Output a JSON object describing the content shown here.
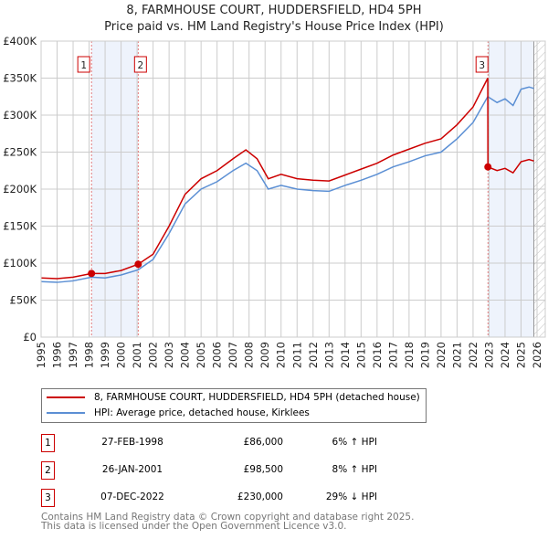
{
  "title": "8, FARMHOUSE COURT, HUDDERSFIELD, HD4 5PH",
  "subtitle": "Price paid vs. HM Land Registry's House Price Index (HPI)",
  "chart_data": {
    "type": "line",
    "title": "8, FARMHOUSE COURT, HUDDERSFIELD, HD4 5PH — Price paid vs. HM Land Registry's House Price Index (HPI)",
    "xlim": [
      1995,
      2026
    ],
    "ylim": [
      0,
      400000
    ],
    "x_ticks": [
      "1995",
      "1996",
      "1997",
      "1998",
      "1999",
      "2000",
      "2001",
      "2002",
      "2003",
      "2004",
      "2005",
      "2006",
      "2007",
      "2008",
      "2009",
      "2010",
      "2011",
      "2012",
      "2013",
      "2014",
      "2015",
      "2016",
      "2017",
      "2018",
      "2019",
      "2020",
      "2021",
      "2022",
      "2023",
      "2024",
      "2025",
      "2026"
    ],
    "y_ticks": [
      "£0",
      "£50K",
      "£100K",
      "£150K",
      "£200K",
      "£250K",
      "£300K",
      "£350K",
      "£400K"
    ],
    "grid": true,
    "series": [
      {
        "name": "8, FARMHOUSE COURT, HUDDERSFIELD, HD4 5PH (detached house)",
        "color": "#cc0000",
        "x": [
          1995,
          1996,
          1997,
          1998.15,
          1999,
          2000,
          2001.07,
          2002,
          2003,
          2004,
          2005,
          2006,
          2007,
          2007.8,
          2008.5,
          2009.2,
          2010,
          2011,
          2012,
          2013,
          2014,
          2015,
          2016,
          2017,
          2018,
          2019,
          2020,
          2021,
          2022,
          2022.92,
          2022.93,
          2023.5,
          2024,
          2024.5,
          2025,
          2025.5,
          2025.8
        ],
        "y": [
          80000,
          79000,
          81000,
          86000,
          86000,
          90000,
          98500,
          112000,
          150000,
          193000,
          214000,
          225000,
          241000,
          253000,
          241000,
          214000,
          220000,
          214000,
          212000,
          211000,
          219000,
          227000,
          235000,
          246000,
          254000,
          262000,
          268000,
          287000,
          311000,
          350000,
          230000,
          225000,
          228000,
          222000,
          237000,
          240000,
          238000
        ]
      },
      {
        "name": "HPI: Average price, detached house, Kirklees",
        "color": "#5b8fd4",
        "x": [
          1995,
          1996,
          1997,
          1998.15,
          1999,
          2000,
          2001.07,
          2002,
          2003,
          2004,
          2005,
          2006,
          2007,
          2007.8,
          2008.5,
          2009.2,
          2010,
          2011,
          2012,
          2013,
          2014,
          2015,
          2016,
          2017,
          2018,
          2019,
          2020,
          2021,
          2022,
          2022.92,
          2023.5,
          2024,
          2024.5,
          2025,
          2025.5,
          2025.8
        ],
        "y": [
          75000,
          74000,
          76000,
          81000,
          80000,
          84000,
          91000,
          105000,
          140000,
          180000,
          200000,
          210000,
          225000,
          235000,
          225000,
          200000,
          205000,
          200000,
          198000,
          197000,
          205000,
          212000,
          220000,
          230000,
          237000,
          245000,
          250000,
          268000,
          290000,
          325000,
          317000,
          322000,
          313000,
          335000,
          338000,
          336000
        ]
      }
    ],
    "sales": [
      {
        "label": "1",
        "x": 1998.15,
        "y": 86000
      },
      {
        "label": "2",
        "x": 2001.07,
        "y": 98500
      },
      {
        "label": "3",
        "x": 2022.93,
        "y": 230000
      }
    ]
  },
  "legend": {
    "property": "8, FARMHOUSE COURT, HUDDERSFIELD, HD4 5PH (detached house)",
    "hpi": "HPI: Average price, detached house, Kirklees"
  },
  "transactions": [
    {
      "num": "1",
      "date": "27-FEB-1998",
      "price": "£86,000",
      "hpi": "6% ↑ HPI"
    },
    {
      "num": "2",
      "date": "26-JAN-2001",
      "price": "£98,500",
      "hpi": "8% ↑ HPI"
    },
    {
      "num": "3",
      "date": "07-DEC-2022",
      "price": "£230,000",
      "hpi": "29% ↓ HPI"
    }
  ],
  "footer": {
    "line1": "Contains HM Land Registry data © Crown copyright and database right 2025.",
    "line2": "This data is licensed under the Open Government Licence v3.0."
  }
}
